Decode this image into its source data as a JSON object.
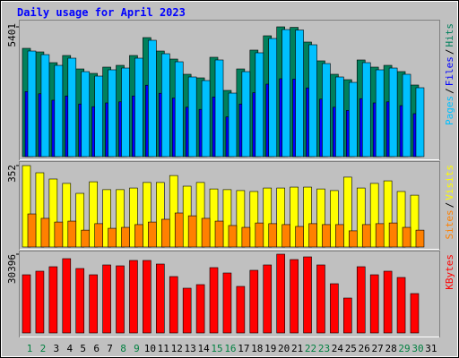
{
  "legend_separator": "/",
  "chart_data": [
    {
      "type": "bar",
      "title": "Daily usage for April 2023",
      "ylim": [
        0,
        5401
      ],
      "yticks": [
        5401
      ],
      "series": [
        {
          "name": "Hits",
          "color": "#00805c",
          "values": [
            4507,
            4358,
            3911,
            4209,
            3650,
            3464,
            3725,
            3799,
            4209,
            4954,
            4395,
            4060,
            3427,
            3278,
            4135,
            2756,
            3650,
            4433,
            5029,
            5401,
            5380,
            4768,
            3986,
            3427,
            3203,
            4023,
            3725,
            3799,
            3539,
            2980,
            null
          ]
        },
        {
          "name": "Files",
          "color": "#0000ff",
          "values": [
            2704,
            2615,
            2347,
            2525,
            2190,
            2078,
            2235,
            2279,
            2525,
            2972,
            2637,
            2436,
            2056,
            1967,
            2481,
            1654,
            2190,
            2660,
            3017,
            3241,
            3228,
            2861,
            2392,
            2056,
            1922,
            2414,
            2235,
            2279,
            2123,
            1788,
            null
          ]
        },
        {
          "name": "Pages",
          "color": "#00c0ff",
          "values": [
            4395,
            4246,
            3799,
            4097,
            3538,
            3352,
            3613,
            3687,
            4097,
            4842,
            4283,
            3948,
            3315,
            3166,
            4023,
            2644,
            3538,
            4321,
            4917,
            5289,
            5268,
            4656,
            3874,
            3315,
            3091,
            3911,
            3613,
            3687,
            3427,
            2868,
            null
          ]
        }
      ]
    },
    {
      "type": "bar",
      "ylim": [
        0,
        352
      ],
      "yticks": [
        352
      ],
      "series": [
        {
          "name": "Visits",
          "color": "#ffff00",
          "values": [
            352,
            321,
            294,
            275,
            232,
            282,
            248,
            248,
            255,
            279,
            279,
            309,
            263,
            279,
            251,
            248,
            244,
            240,
            255,
            255,
            259,
            259,
            251,
            244,
            302,
            255,
            275,
            286,
            240,
            224,
            null
          ]
        },
        {
          "name": "Sites",
          "color": "#ff8000",
          "values": [
            143,
            124,
            108,
            112,
            73,
            101,
            81,
            85,
            97,
            108,
            120,
            147,
            135,
            124,
            112,
            93,
            85,
            104,
            101,
            97,
            89,
            101,
            97,
            97,
            70,
            97,
            101,
            104,
            85,
            73,
            null
          ]
        }
      ]
    },
    {
      "type": "bar",
      "ylim": [
        0,
        30396
      ],
      "yticks": [
        30396
      ],
      "categories": [
        "1",
        "2",
        "3",
        "4",
        "5",
        "6",
        "7",
        "8",
        "9",
        "10",
        "11",
        "12",
        "13",
        "14",
        "15",
        "16",
        "17",
        "18",
        "19",
        "20",
        "21",
        "22",
        "23",
        "24",
        "25",
        "26",
        "27",
        "28",
        "29",
        "30",
        "31"
      ],
      "category_colors": [
        "#008040",
        "#008040",
        "#000000",
        "#000000",
        "#000000",
        "#000000",
        "#000000",
        "#008040",
        "#008040",
        "#000000",
        "#000000",
        "#000000",
        "#000000",
        "#000000",
        "#008040",
        "#008040",
        "#000000",
        "#000000",
        "#000000",
        "#000000",
        "#000000",
        "#008040",
        "#008040",
        "#000000",
        "#000000",
        "#000000",
        "#000000",
        "#000000",
        "#008040",
        "#008040",
        "#000000"
      ],
      "series": [
        {
          "name": "KBytes",
          "color": "#ff0000",
          "values": [
            22452,
            23833,
            25560,
            28669,
            24869,
            22452,
            26251,
            25906,
            27978,
            27978,
            26597,
            21761,
            17271,
            18652,
            25215,
            23142,
            17961,
            24179,
            26251,
            30396,
            28323,
            29360,
            26251,
            18997,
            13471,
            25560,
            22452,
            23833,
            21415,
            15198,
            null
          ]
        }
      ]
    }
  ]
}
